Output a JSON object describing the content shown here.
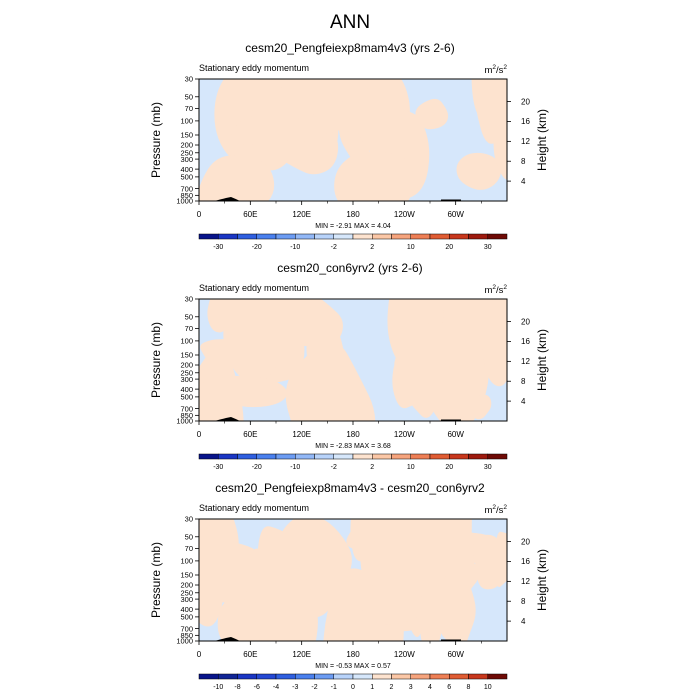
{
  "main_title": "ANN",
  "colors": {
    "region_light_blue": "#d6e7fb",
    "region_light_orange": "#fde3cf",
    "topography": "#000000"
  },
  "chart_data": [
    {
      "type": "heatmap",
      "title": "cesm20_Pengfeiexp8mam4v3 (yrs 2-6)",
      "subtitle": "Stationary eddy momentum",
      "units": "m²/s²",
      "units_base": "m",
      "units_exp1": "2",
      "units_mid": "/s",
      "units_exp2": "2",
      "ylabel": "Pressure (mb)",
      "ylabel_right": "Height (km)",
      "x_ticks": [
        "0",
        "60E",
        "120E",
        "180",
        "120W",
        "60W"
      ],
      "x_values": [
        0,
        60,
        120,
        180,
        240,
        300
      ],
      "xlim": [
        0,
        360
      ],
      "pressure_ticks": [
        30,
        50,
        70,
        100,
        150,
        200,
        250,
        300,
        400,
        500,
        700,
        850,
        1000
      ],
      "pressure_tick_labels": [
        "30",
        "50",
        "70",
        "100",
        "150",
        "200",
        "250",
        "300",
        "400",
        "500",
        "700",
        "850",
        "1000"
      ],
      "pressure_range": [
        30,
        1000
      ],
      "height_ticks": [
        4,
        8,
        12,
        16,
        20
      ],
      "height_tick_labels": [
        "4",
        "8",
        "12",
        "16",
        "20"
      ],
      "minmax_text": "MIN = -2.91   MAX = 4.04",
      "min": -2.91,
      "max": 4.04,
      "colorbar_levels": [
        "-30",
        "-20",
        "-10",
        "-2",
        "2",
        "10",
        "20",
        "30"
      ],
      "colorbar_colors": [
        "#08148a",
        "#1a36c4",
        "#2f5fe0",
        "#4a80ee",
        "#6c9cf3",
        "#92b8f7",
        "#b8d3fa",
        "#d6e7fb",
        "#fde3cf",
        "#fbc7a6",
        "#f6a47d",
        "#ee7f55",
        "#e05c33",
        "#c8371c",
        "#9e1a0e",
        "#6e0a05"
      ],
      "seed": 11
    },
    {
      "type": "heatmap",
      "title": "cesm20_con6yrv2 (yrs 2-6)",
      "subtitle": "Stationary eddy momentum",
      "units": "m²/s²",
      "units_base": "m",
      "units_exp1": "2",
      "units_mid": "/s",
      "units_exp2": "2",
      "ylabel": "Pressure (mb)",
      "ylabel_right": "Height (km)",
      "x_ticks": [
        "0",
        "60E",
        "120E",
        "180",
        "120W",
        "60W"
      ],
      "x_values": [
        0,
        60,
        120,
        180,
        240,
        300
      ],
      "xlim": [
        0,
        360
      ],
      "pressure_ticks": [
        30,
        50,
        70,
        100,
        150,
        200,
        250,
        300,
        400,
        500,
        700,
        850,
        1000
      ],
      "pressure_tick_labels": [
        "30",
        "50",
        "70",
        "100",
        "150",
        "200",
        "250",
        "300",
        "400",
        "500",
        "700",
        "850",
        "1000"
      ],
      "pressure_range": [
        30,
        1000
      ],
      "height_ticks": [
        4,
        8,
        12,
        16,
        20
      ],
      "height_tick_labels": [
        "4",
        "8",
        "12",
        "16",
        "20"
      ],
      "minmax_text": "MIN = -2.83   MAX = 3.68",
      "min": -2.83,
      "max": 3.68,
      "colorbar_levels": [
        "-30",
        "-20",
        "-10",
        "-2",
        "2",
        "10",
        "20",
        "30"
      ],
      "colorbar_colors": [
        "#08148a",
        "#1a36c4",
        "#2f5fe0",
        "#4a80ee",
        "#6c9cf3",
        "#92b8f7",
        "#b8d3fa",
        "#d6e7fb",
        "#fde3cf",
        "#fbc7a6",
        "#f6a47d",
        "#ee7f55",
        "#e05c33",
        "#c8371c",
        "#9e1a0e",
        "#6e0a05"
      ],
      "seed": 23
    },
    {
      "type": "heatmap",
      "title": "cesm20_Pengfeiexp8mam4v3 - cesm20_con6yrv2",
      "subtitle": "Stationary eddy momentum",
      "units": "m²/s²",
      "units_base": "m",
      "units_exp1": "2",
      "units_mid": "/s",
      "units_exp2": "2",
      "ylabel": "Pressure (mb)",
      "ylabel_right": "Height (km)",
      "x_ticks": [
        "0",
        "60E",
        "120E",
        "180",
        "120W",
        "60W"
      ],
      "x_values": [
        0,
        60,
        120,
        180,
        240,
        300
      ],
      "xlim": [
        0,
        360
      ],
      "pressure_ticks": [
        30,
        50,
        70,
        100,
        150,
        200,
        250,
        300,
        400,
        500,
        700,
        850,
        1000
      ],
      "pressure_tick_labels": [
        "30",
        "50",
        "70",
        "100",
        "150",
        "200",
        "250",
        "300",
        "400",
        "500",
        "700",
        "850",
        "1000"
      ],
      "pressure_range": [
        30,
        1000
      ],
      "height_ticks": [
        4,
        8,
        12,
        16,
        20
      ],
      "height_tick_labels": [
        "4",
        "8",
        "12",
        "16",
        "20"
      ],
      "minmax_text": "MIN = -0.53   MAX =  0.57",
      "min": -0.53,
      "max": 0.57,
      "colorbar_levels": [
        "-10",
        "-8",
        "-6",
        "-4",
        "-3",
        "-2",
        "-1",
        "0",
        "1",
        "2",
        "3",
        "4",
        "6",
        "8",
        "10"
      ],
      "colorbar_colors": [
        "#08148a",
        "#102596",
        "#1a36c4",
        "#2448d4",
        "#2f5fe0",
        "#4a80ee",
        "#6c9cf3",
        "#b8d3fa",
        "#d6e7fb",
        "#fde3cf",
        "#fbc7a6",
        "#f6a47d",
        "#ee7f55",
        "#e05c33",
        "#c8371c",
        "#6e0a05"
      ],
      "seed": 37
    }
  ]
}
